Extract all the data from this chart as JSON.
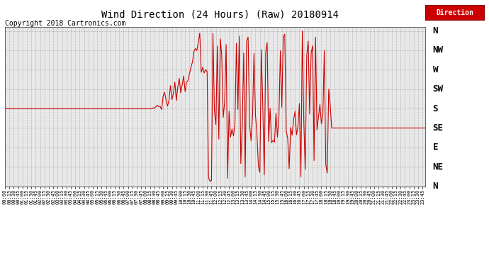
{
  "title": "Wind Direction (24 Hours) (Raw) 20180914",
  "copyright": "Copyright 2018 Cartronics.com",
  "legend_label": "Direction",
  "line_color": "#cc0000",
  "bg_color": "#ffffff",
  "plot_bg_color": "#e8e8e8",
  "grid_color": "#888888",
  "ytick_labels": [
    "N",
    "NW",
    "W",
    "SW",
    "S",
    "SE",
    "E",
    "NE",
    "N"
  ],
  "ytick_values": [
    360,
    315,
    270,
    225,
    180,
    135,
    90,
    45,
    0
  ],
  "ylim": [
    0,
    370
  ],
  "figsize": [
    6.9,
    3.75
  ],
  "dpi": 100
}
